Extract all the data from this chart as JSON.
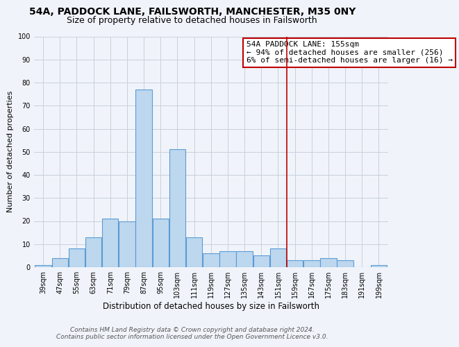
{
  "title": "54A, PADDOCK LANE, FAILSWORTH, MANCHESTER, M35 0NY",
  "subtitle": "Size of property relative to detached houses in Failsworth",
  "xlabel": "Distribution of detached houses by size in Failsworth",
  "ylabel": "Number of detached properties",
  "bar_labels": [
    "39sqm",
    "47sqm",
    "55sqm",
    "63sqm",
    "71sqm",
    "79sqm",
    "87sqm",
    "95sqm",
    "103sqm",
    "111sqm",
    "119sqm",
    "127sqm",
    "135sqm",
    "143sqm",
    "151sqm",
    "159sqm",
    "167sqm",
    "175sqm",
    "183sqm",
    "191sqm",
    "199sqm"
  ],
  "bar_values": [
    1,
    4,
    8,
    13,
    21,
    20,
    77,
    21,
    51,
    13,
    6,
    7,
    7,
    5,
    8,
    3,
    3,
    4,
    3,
    0,
    1
  ],
  "bar_color": "#bdd7ee",
  "bar_edge_color": "#5b9bd5",
  "vline_x": 14.5,
  "vline_color": "#c00000",
  "ylim": [
    0,
    100
  ],
  "yticks": [
    0,
    10,
    20,
    30,
    40,
    50,
    60,
    70,
    80,
    90,
    100
  ],
  "background_color": "#f0f4fa",
  "grid_color": "#c8d0dc",
  "annotation_title": "54A PADDOCK LANE: 155sqm",
  "annotation_line1": "← 94% of detached houses are smaller (256)",
  "annotation_line2": "6% of semi-detached houses are larger (16) →",
  "annotation_box_color": "#ffffff",
  "annotation_box_edge": "#c00000",
  "footer_line1": "Contains HM Land Registry data © Crown copyright and database right 2024.",
  "footer_line2": "Contains public sector information licensed under the Open Government Licence v3.0.",
  "title_fontsize": 10,
  "subtitle_fontsize": 9,
  "xlabel_fontsize": 8.5,
  "ylabel_fontsize": 8,
  "tick_fontsize": 7,
  "annotation_fontsize": 8,
  "footer_fontsize": 6.5
}
